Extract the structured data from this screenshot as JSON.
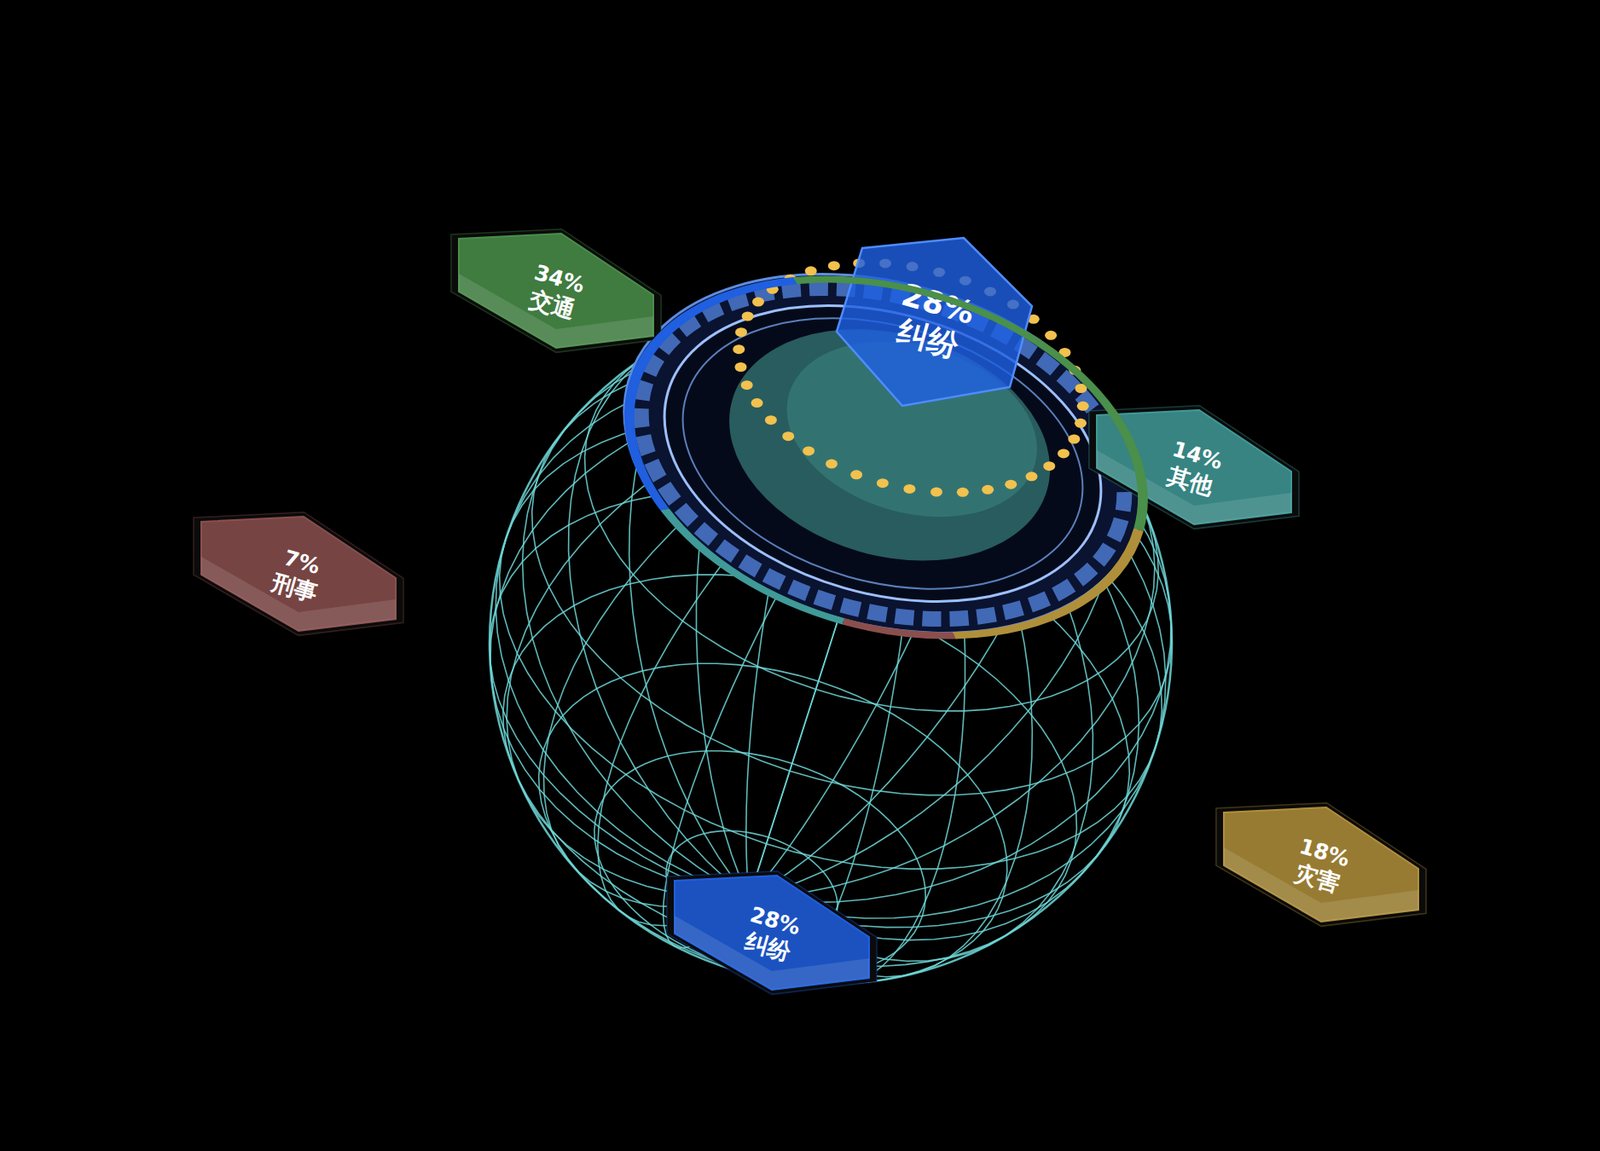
{
  "chart_data": {
    "type": "pie",
    "categories": [
      "交通",
      "纠纷",
      "其他",
      "刑事",
      "灾害"
    ],
    "values": [
      34,
      28,
      14,
      7,
      18
    ],
    "value_labels": [
      "34%",
      "28%",
      "14%",
      "7%",
      "18%"
    ],
    "colors": [
      "#4a8f4a",
      "#1f5fe0",
      "#3f9a98",
      "#8a4f4d",
      "#b08f3a"
    ],
    "data_labels": true
  }
}
